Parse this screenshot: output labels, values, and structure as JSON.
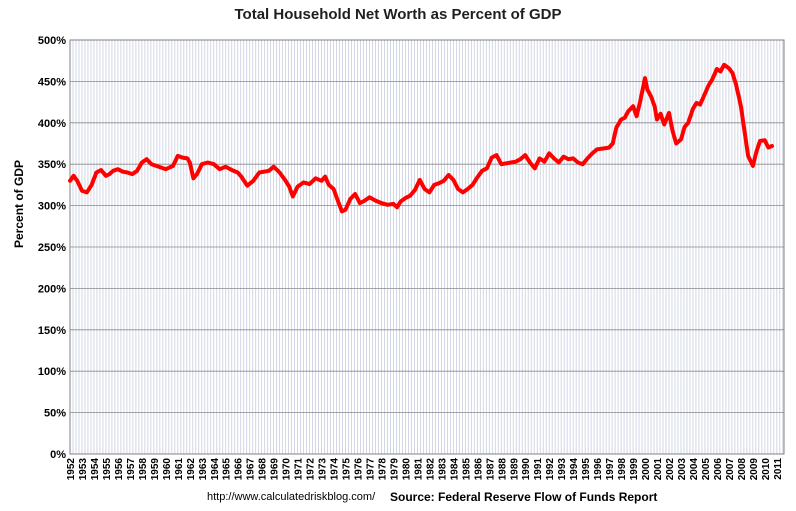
{
  "chart_data": {
    "type": "line",
    "title": "Total Household Net Worth as Percent of GDP",
    "ylabel": "Percent of GDP",
    "xlabel": "",
    "ylim": [
      0,
      500
    ],
    "y_ticks": [
      "0%",
      "50%",
      "100%",
      "150%",
      "200%",
      "250%",
      "300%",
      "350%",
      "400%",
      "450%",
      "500%"
    ],
    "x_ticks": [
      "1952",
      "1953",
      "1954",
      "1955",
      "1956",
      "1957",
      "1958",
      "1959",
      "1960",
      "1961",
      "1962",
      "1963",
      "1964",
      "1965",
      "1966",
      "1967",
      "1968",
      "1969",
      "1970",
      "1971",
      "1972",
      "1973",
      "1974",
      "1975",
      "1976",
      "1977",
      "1978",
      "1979",
      "1980",
      "1981",
      "1982",
      "1983",
      "1984",
      "1985",
      "1986",
      "1987",
      "1988",
      "1989",
      "1990",
      "1991",
      "1992",
      "1993",
      "1994",
      "1995",
      "1996",
      "1997",
      "1998",
      "1999",
      "2000",
      "2001",
      "2002",
      "2003",
      "2004",
      "2005",
      "2006",
      "2007",
      "2008",
      "2009",
      "2010",
      "2011"
    ],
    "grid": true,
    "color": "#ff0000",
    "series": [
      {
        "x": [
          1952.0,
          1952.3,
          1952.6,
          1953.0,
          1953.4,
          1953.8,
          1954.2,
          1954.6,
          1955.0,
          1955.3,
          1955.6,
          1956.0,
          1956.4,
          1956.8,
          1957.2,
          1957.6,
          1958.0,
          1958.4,
          1958.8,
          1959.2,
          1959.6,
          1960.0,
          1960.3,
          1960.6,
          1961.0,
          1961.4,
          1961.8,
          1962.0,
          1962.3,
          1962.6,
          1963.0,
          1963.5,
          1964.0,
          1964.5,
          1965.0,
          1965.5,
          1966.0,
          1966.3,
          1966.8,
          1967.3,
          1967.8,
          1968.2,
          1968.6,
          1969.0,
          1969.5,
          1970.0,
          1970.3,
          1970.6,
          1971.0,
          1971.5,
          1972.0,
          1972.5,
          1973.0,
          1973.3,
          1973.6,
          1974.0,
          1974.3,
          1974.7,
          1975.0,
          1975.4,
          1975.8,
          1976.2,
          1976.6,
          1977.0,
          1977.5,
          1978.0,
          1978.5,
          1979.0,
          1979.3,
          1979.6,
          1980.0,
          1980.4,
          1980.8,
          1981.2,
          1981.6,
          1982.0,
          1982.4,
          1982.8,
          1983.2,
          1983.6,
          1984.0,
          1984.4,
          1984.8,
          1985.2,
          1985.6,
          1986.0,
          1986.4,
          1986.8,
          1987.2,
          1987.6,
          1988.0,
          1988.4,
          1988.8,
          1989.2,
          1989.6,
          1990.0,
          1990.4,
          1990.8,
          1991.2,
          1991.6,
          1992.0,
          1992.4,
          1992.8,
          1993.2,
          1993.6,
          1994.0,
          1994.4,
          1994.8,
          1995.2,
          1995.6,
          1996.0,
          1996.5,
          1997.0,
          1997.3,
          1997.6,
          1998.0,
          1998.3,
          1998.6,
          1999.0,
          1999.3,
          1999.6,
          2000.0,
          2000.2,
          2000.5,
          2000.8,
          2001.0,
          2001.3,
          2001.6,
          2002.0,
          2002.3,
          2002.6,
          2003.0,
          2003.3,
          2003.6,
          2004.0,
          2004.3,
          2004.6,
          2005.0,
          2005.3,
          2005.6,
          2006.0,
          2006.3,
          2006.6,
          2007.0,
          2007.3,
          2007.6,
          2008.0,
          2008.3,
          2008.6,
          2009.0,
          2009.3,
          2009.6,
          2010.0,
          2010.3,
          2010.6
        ],
        "y": [
          330,
          336,
          330,
          318,
          316,
          325,
          340,
          343,
          336,
          338,
          342,
          344,
          341,
          340,
          338,
          342,
          352,
          356,
          350,
          348,
          346,
          344,
          346,
          348,
          360,
          358,
          357,
          352,
          333,
          338,
          350,
          352,
          350,
          344,
          347,
          343,
          340,
          335,
          324,
          330,
          340,
          341,
          342,
          347,
          340,
          330,
          323,
          311,
          323,
          328,
          326,
          333,
          330,
          335,
          325,
          320,
          308,
          293,
          295,
          308,
          314,
          303,
          306,
          310,
          306,
          303,
          301,
          302,
          298,
          305,
          309,
          312,
          319,
          331,
          320,
          316,
          325,
          327,
          330,
          337,
          331,
          320,
          316,
          320,
          325,
          334,
          342,
          345,
          358,
          361,
          350,
          351,
          352,
          353,
          356,
          361,
          352,
          345,
          357,
          353,
          363,
          357,
          352,
          359,
          356,
          357,
          352,
          350,
          357,
          363,
          368,
          369,
          370,
          375,
          394,
          404,
          406,
          414,
          420,
          408,
          426,
          454,
          440,
          432,
          420,
          404,
          411,
          398,
          412,
          390,
          375,
          380,
          395,
          400,
          417,
          424,
          422,
          435,
          445,
          452,
          465,
          462,
          470,
          466,
          460,
          446,
          420,
          390,
          360,
          348,
          365,
          378,
          379,
          370,
          372
        ]
      }
    ]
  },
  "footer": {
    "url": "http://www.calculatedriskblog.com/",
    "source": "Source: Federal Reserve Flow of Funds Report"
  }
}
